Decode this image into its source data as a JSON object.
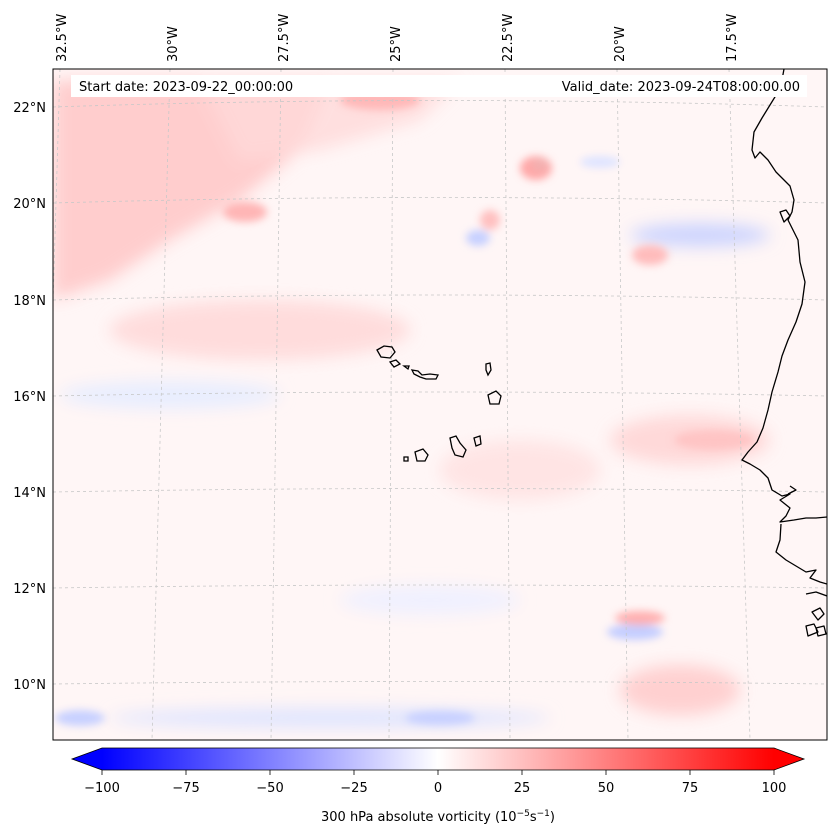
{
  "map": {
    "start_label": "Start date: 2023-09-22_00:00:00",
    "valid_label": "Valid_date: 2023-09-24T08:00:00.00",
    "lon_ticks": [
      "32.5°W",
      "30°W",
      "27.5°W",
      "25°W",
      "22.5°W",
      "20°W",
      "17.5°W"
    ],
    "lat_ticks": [
      "22°N",
      "20°N",
      "18°N",
      "16°N",
      "14°N",
      "12°N",
      "10°N"
    ],
    "field": "300 hPa absolute vorticity",
    "coastline_color": "#000000",
    "gridline_color": "#c8c8c8"
  },
  "colorbar": {
    "min": -100,
    "max": 100,
    "ticks": [
      "−100",
      "−75",
      "−50",
      "−25",
      "0",
      "25",
      "50",
      "75",
      "100"
    ],
    "label_main": "300 hPa absolute vorticity (10",
    "label_exp1": "−5",
    "label_mid": "s",
    "label_exp2": "−1",
    "label_end": ")",
    "cmap": "bwr",
    "extend": "both",
    "color_low": "#0000ff",
    "color_mid": "#ffffff",
    "color_high": "#ff0000"
  }
}
